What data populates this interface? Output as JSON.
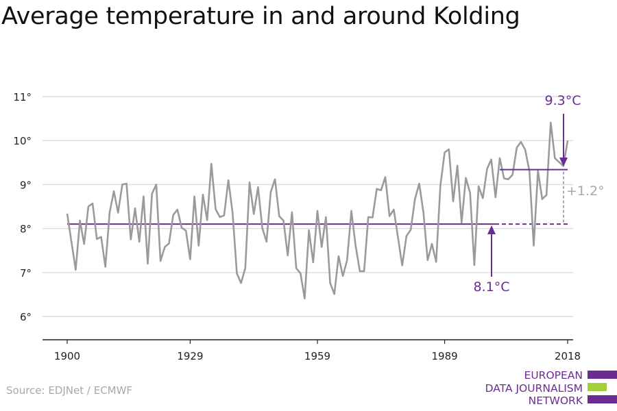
{
  "title": "Average temperature in and around Kolding",
  "source": "Source: EDJNet / ECMWF",
  "logo": {
    "lines": [
      "EUROPEAN",
      "DATA JOURNALISM",
      "NETWORK"
    ],
    "colors": {
      "purple": "#6b2c91",
      "green": "#a4cf3c"
    }
  },
  "colors": {
    "series": "#9a9a9a",
    "accent": "#6b2c91",
    "grid": "#dcdcdc",
    "axis": "#222222",
    "delta": "#a8a8a8"
  },
  "chart_data": {
    "type": "line",
    "title": "Average temperature in and around Kolding",
    "xlabel": "",
    "ylabel": "",
    "xlim": [
      1900,
      2018
    ],
    "ylim": [
      6,
      11
    ],
    "x_ticks": [
      "1900",
      "1929",
      "1959",
      "1989",
      "2018"
    ],
    "x_tick_values": [
      1900,
      1929,
      1959,
      1989,
      2018
    ],
    "y_ticks": [
      "6°",
      "7°",
      "8°",
      "9°",
      "10°",
      "11°"
    ],
    "y_tick_values": [
      6,
      7,
      8,
      9,
      10,
      11
    ],
    "grid": true,
    "series": [
      {
        "x": [
          1900,
          1901,
          1902,
          1903,
          1904,
          1905,
          1906,
          1907,
          1908,
          1909,
          1910,
          1911,
          1912,
          1913,
          1914,
          1915,
          1916,
          1917,
          1918,
          1919,
          1920,
          1921,
          1922,
          1923,
          1924,
          1925,
          1926,
          1927,
          1928,
          1929,
          1930,
          1931,
          1932,
          1933,
          1934,
          1935,
          1936,
          1937,
          1938,
          1939,
          1940,
          1941,
          1942,
          1943,
          1944,
          1945,
          1946,
          1947,
          1948,
          1949,
          1950,
          1951,
          1952,
          1953,
          1954,
          1955,
          1956,
          1957,
          1958,
          1959,
          1960,
          1961,
          1962,
          1963,
          1964,
          1965,
          1966,
          1967,
          1968,
          1969,
          1970,
          1971,
          1972,
          1973,
          1974,
          1975,
          1976,
          1977,
          1978,
          1979,
          1980,
          1981,
          1982,
          1983,
          1984,
          1985,
          1986,
          1987,
          1988,
          1989,
          1990,
          1991,
          1992,
          1993,
          1994,
          1995,
          1996,
          1997,
          1998,
          1999,
          2000,
          2001,
          2002,
          2003,
          2004,
          2005,
          2006,
          2007,
          2008,
          2009,
          2010,
          2011,
          2012,
          2013,
          2014,
          2015,
          2016,
          2017,
          2018
        ],
        "values": [
          8.34,
          7.7,
          7.06,
          8.18,
          7.65,
          8.5,
          8.57,
          7.76,
          7.81,
          7.13,
          8.36,
          8.85,
          8.36,
          9.0,
          9.02,
          7.75,
          8.46,
          7.7,
          8.73,
          7.2,
          8.79,
          9.0,
          7.26,
          7.58,
          7.66,
          8.31,
          8.43,
          8.02,
          7.95,
          7.3,
          8.73,
          7.61,
          8.77,
          8.19,
          9.47,
          8.44,
          8.26,
          8.3,
          9.1,
          8.35,
          6.98,
          6.76,
          7.1,
          9.05,
          8.33,
          8.94,
          8.01,
          7.7,
          8.83,
          9.12,
          8.28,
          8.18,
          7.39,
          8.37,
          7.1,
          6.98,
          6.41,
          7.96,
          7.23,
          8.4,
          7.58,
          8.26,
          6.76,
          6.51,
          7.37,
          6.92,
          7.28,
          8.4,
          7.61,
          7.03,
          7.03,
          8.26,
          8.25,
          8.9,
          8.87,
          9.17,
          8.28,
          8.43,
          7.8,
          7.16,
          7.83,
          7.97,
          8.67,
          9.02,
          8.36,
          7.28,
          7.65,
          7.24,
          8.98,
          9.73,
          9.8,
          8.62,
          9.43,
          8.13,
          9.15,
          8.81,
          7.17,
          8.96,
          8.69,
          9.36,
          9.57,
          8.71,
          9.6,
          9.14,
          9.12,
          9.22,
          9.84,
          9.97,
          9.79,
          9.3,
          7.61,
          9.31,
          8.67,
          8.76,
          10.41,
          9.6,
          9.51,
          9.42,
          10.0
        ]
      }
    ],
    "annotations": [
      {
        "label": "8.1°C",
        "value": 8.1,
        "from_year": 1900,
        "to_year": 2018
      },
      {
        "label": "9.3°C",
        "value": 9.34,
        "from_year": 2002,
        "to_year": 2018
      },
      {
        "label": "+1.2°",
        "value": 1.2
      }
    ]
  }
}
